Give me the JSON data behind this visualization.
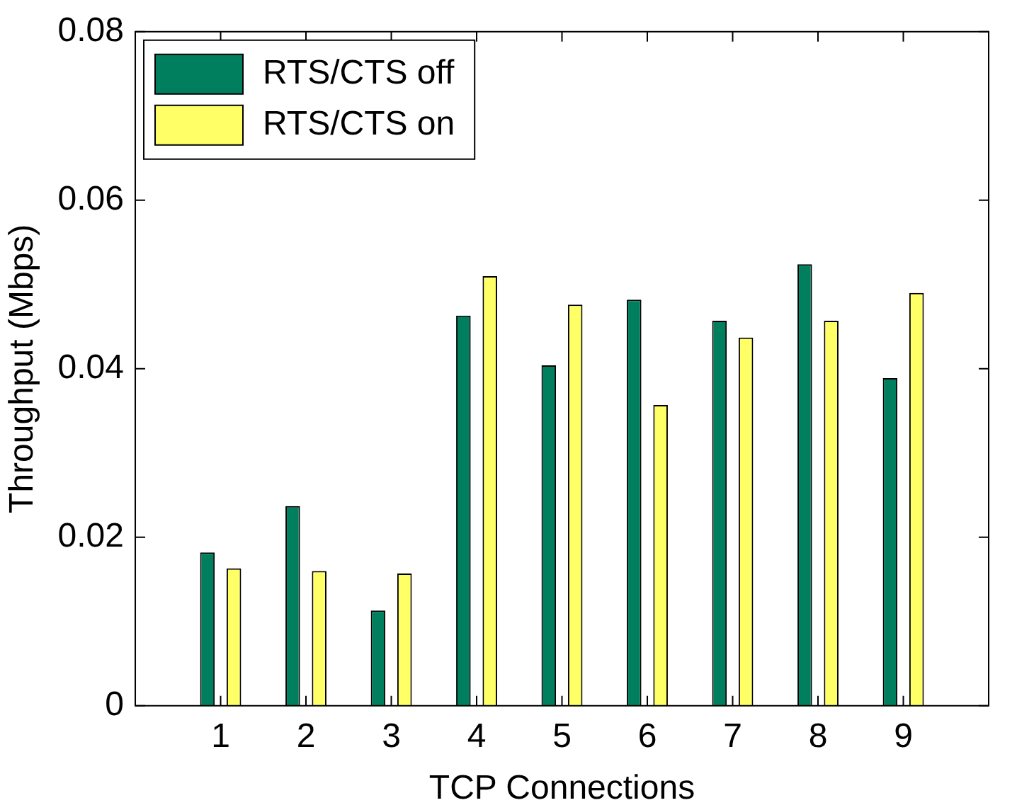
{
  "chart_data": {
    "type": "bar",
    "xlabel": "TCP Connections",
    "ylabel": "Throughput (Mbps)",
    "categories": [
      "1",
      "2",
      "3",
      "4",
      "5",
      "6",
      "7",
      "8",
      "9"
    ],
    "series": [
      {
        "name": "RTS/CTS off",
        "color": "#007f5f",
        "values": [
          0.0182,
          0.0237,
          0.0113,
          0.0463,
          0.0404,
          0.0482,
          0.0457,
          0.0524,
          0.0389
        ]
      },
      {
        "name": "RTS/CTS on",
        "color": "#ffff66",
        "values": [
          0.0163,
          0.016,
          0.0157,
          0.051,
          0.0476,
          0.0357,
          0.0437,
          0.0457,
          0.049
        ]
      }
    ],
    "ylim": [
      0,
      0.08
    ],
    "yticks": [
      0,
      0.02,
      0.04,
      0.06,
      0.08
    ],
    "grid": false,
    "legend": "top left"
  }
}
